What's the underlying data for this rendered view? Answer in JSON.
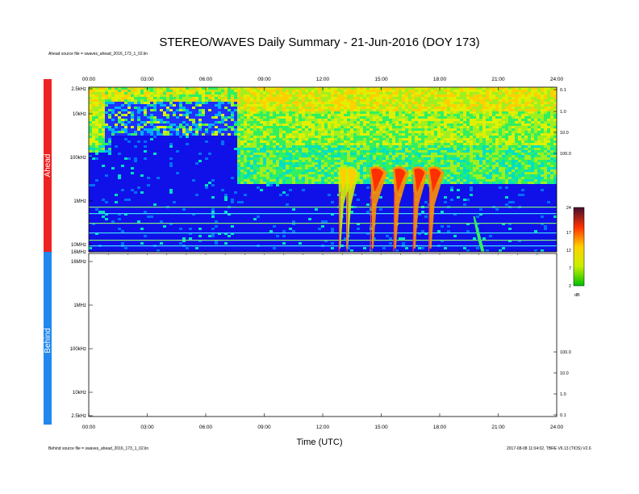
{
  "title": "STEREO/WAVES Daily Summary - 21-Jun-2016 (DOY 173)",
  "ahead_source": "Ahead source file = swaves_ahead_2016_173_1_02.lin",
  "behind_source": "Behind source file = swaves_ahead_2016_173_1_02.lin",
  "footer_right": "2017-08-08 11:04:02, TBRE V6.13 (TIOS) V2.6",
  "colorbar_unit": "dB",
  "chart_data": {
    "type": "heatmap",
    "xlabel": "Time (UTC)",
    "x_ticks": [
      "00:00",
      "03:00",
      "06:00",
      "09:00",
      "12:00",
      "15:00",
      "18:00",
      "21:00",
      "24:00"
    ],
    "xlim_hours": [
      0,
      24
    ],
    "panels": [
      {
        "name": "Ahead",
        "color": "#ee2222",
        "freq_ticks": [
          "2.5kHz",
          "10kHz",
          "100kHz",
          "1MHz",
          "10MHz",
          "16MHz"
        ],
        "right_ticks": [
          "0.1",
          "1.0",
          "10.0",
          "100.0"
        ],
        "has_data": true
      },
      {
        "name": "Behind",
        "color": "#2288ee",
        "freq_ticks": [
          "16MHz",
          "1MHz",
          "100kHz",
          "10kHz",
          "2.5kHz"
        ],
        "right_ticks": [
          "100.0",
          "10.0",
          "1.0",
          "0.1"
        ],
        "has_data": false
      }
    ],
    "colorbar": {
      "range": [
        2,
        24
      ],
      "ticks": [
        "24",
        "17",
        "12",
        "7",
        "2"
      ],
      "unit": "dB"
    },
    "bursts": [
      {
        "start_hour": 12.8,
        "intensity": 0.55
      },
      {
        "start_hour": 13.2,
        "intensity": 0.45
      },
      {
        "start_hour": 14.4,
        "intensity": 1.0
      },
      {
        "start_hour": 15.6,
        "intensity": 0.8
      },
      {
        "start_hour": 16.6,
        "intensity": 0.75
      },
      {
        "start_hour": 17.4,
        "intensity": 0.85
      }
    ],
    "grid": false
  }
}
